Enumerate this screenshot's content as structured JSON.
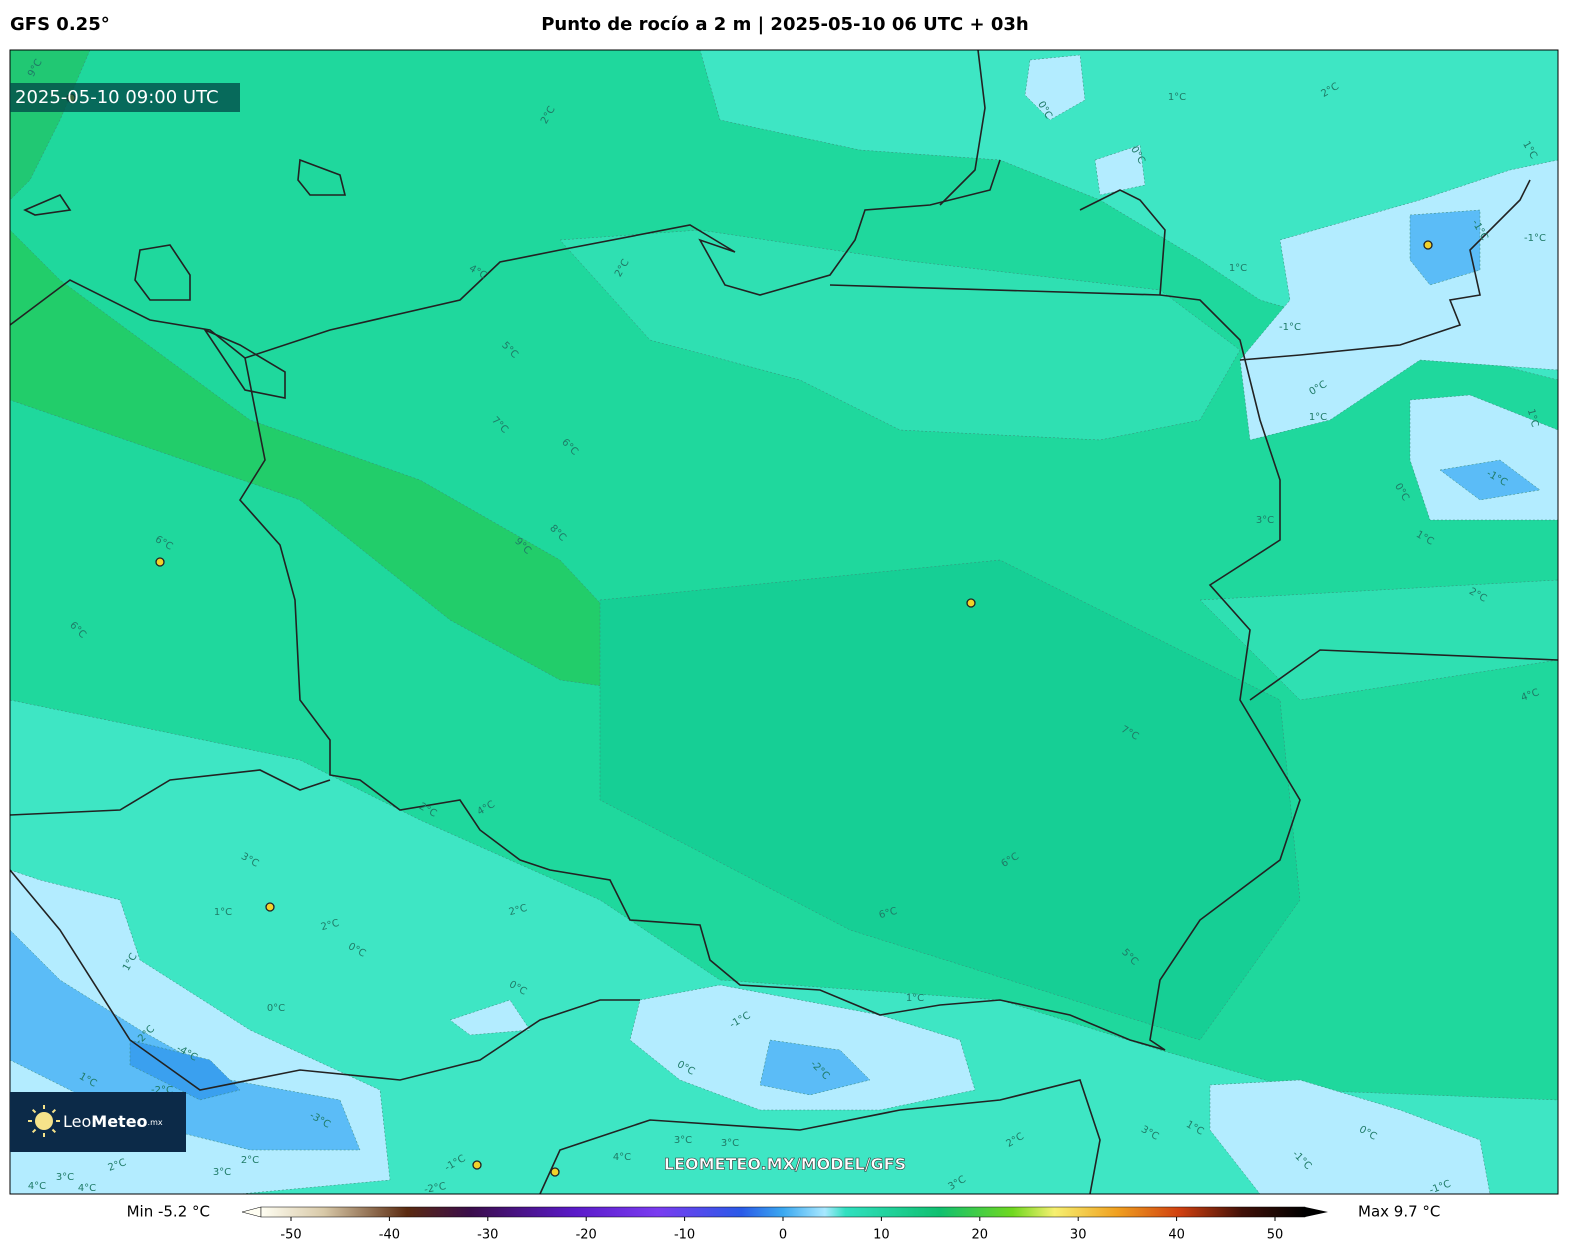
{
  "header": {
    "model": "GFS 0.25°",
    "title": "Punto de rocío a 2 m | 2025-05-10 06 UTC + 03h"
  },
  "map": {
    "valid_time": "2025-05-10 09:00 UTC",
    "contour_labels": [
      "9°C",
      "2°C",
      "0°C",
      "1°C",
      "2°C",
      "1°C",
      "0°C",
      "4°C",
      "2°C",
      "1°C",
      "-1°C",
      "-1°C",
      "5°C",
      "-1°C",
      "0°C",
      "1°C",
      "1°C",
      "7°C",
      "6°C",
      "-1°C",
      "0°C",
      "3°C",
      "8°C",
      "9°C",
      "6°C",
      "1°C",
      "2°C",
      "6°C",
      "4°C",
      "7°C",
      "2°C",
      "4°C",
      "3°C",
      "6°C",
      "6°C",
      "1°C",
      "2°C",
      "2°C",
      "0°C",
      "5°C",
      "1°C",
      "0°C",
      "1°C",
      "0°C",
      "-1°C",
      "-2°C",
      "-4°C",
      "-2°C",
      "0°C",
      "1°C",
      "-2°C",
      "-3°C",
      "1°C",
      "3°C",
      "0°C",
      "2°C",
      "3°C",
      "3°C",
      "4°C",
      "-1°C",
      "-1°C",
      "2°C",
      "3°C",
      "3°C",
      "2°C",
      "4°C",
      "4°C",
      "-2°C",
      "3°C",
      "-1°C"
    ],
    "watermark": "LEOMETEO.MX/MODEL/GFS",
    "logo": {
      "name_light": "Leo",
      "name_bold": "Meteo",
      "suffix": ".mx"
    }
  },
  "colorbar": {
    "min_label": "Min -5.2 °C",
    "max_label": "Max 9.7 °C",
    "range": [
      -50,
      50
    ],
    "ticks": [
      -50,
      -40,
      -30,
      -20,
      -10,
      0,
      10,
      20,
      30,
      40,
      50
    ]
  }
}
